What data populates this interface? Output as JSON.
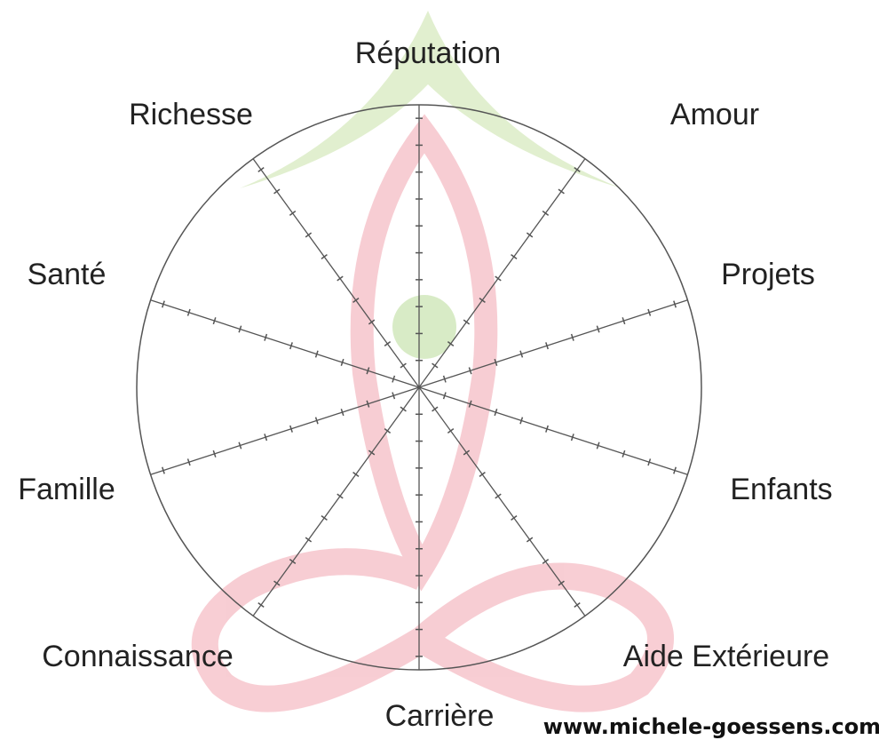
{
  "wheel": {
    "labels": [
      "Réputation",
      "Amour",
      "Projets",
      "Enfants",
      "Aide Extérieure",
      "Carrière",
      "Connaissance",
      "Famille",
      "Santé",
      "Richesse"
    ]
  },
  "footer": {
    "url": "www.michele-goessens.com"
  }
}
